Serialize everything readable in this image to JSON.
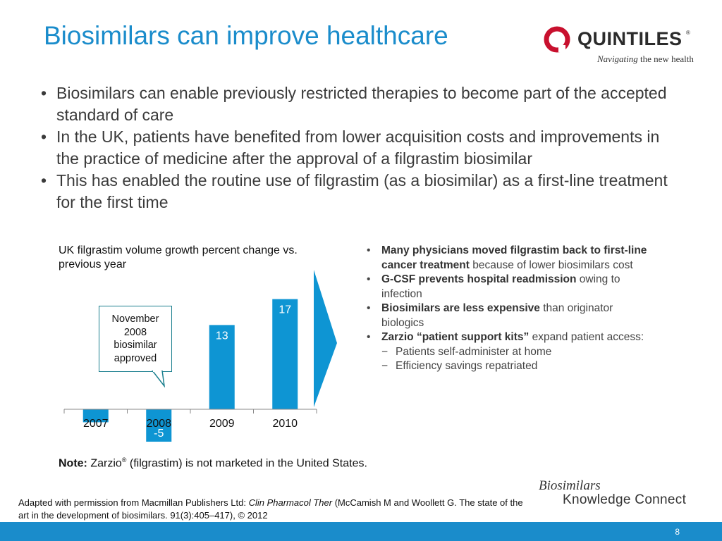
{
  "slide": {
    "title": "Biosimilars can improve healthcare",
    "page_number": "8"
  },
  "logo": {
    "name": "QUINTILES",
    "registered": "®",
    "tagline_italic": "Navigating",
    "tagline_rest": " the new health",
    "colors": {
      "mark": "#c8102e",
      "text": "#2b2b2b"
    }
  },
  "bullets": [
    "Biosimilars can enable previously restricted therapies to become part of the accepted standard of care",
    "In the UK, patients have benefited from lower acquisition costs and improvements in the practice of medicine after the approval of a filgrastim biosimilar",
    "This has enabled the routine use of filgrastim (as a biosimilar) as a first-line treatment for the first time"
  ],
  "bullet_symbol": "•",
  "callout": {
    "lines": [
      "November",
      "2008",
      "biosimilar",
      "approved"
    ]
  },
  "chart_data": {
    "type": "bar",
    "title": "UK filgrastim volume growth percent change vs. previous year",
    "categories": [
      "2007",
      "2008",
      "2009",
      "2010"
    ],
    "values": [
      -2,
      -5,
      13,
      17
    ],
    "data_labels": [
      "",
      "-5",
      "13",
      "17"
    ],
    "ylim": [
      -6,
      20
    ],
    "grid": false,
    "color": "#0e95d3"
  },
  "right_list": [
    {
      "level": 1,
      "bold": "Many physicians moved filgrastim back to first-line cancer treatment",
      "text": " because of lower biosimilars cost"
    },
    {
      "level": 1,
      "bold": "G-CSF prevents hospital readmission",
      "text": " owing to infection"
    },
    {
      "level": 1,
      "bold": "Biosimilars are less expensive",
      "text": " than originator biologics"
    },
    {
      "level": 1,
      "bold": "Zarzio “patient support kits”",
      "text": " expand patient access:"
    },
    {
      "level": 2,
      "bold": "",
      "text": "Patients self-administer at home"
    },
    {
      "level": 2,
      "bold": "",
      "text": "Efficiency savings repatriated"
    }
  ],
  "note": {
    "label": "Note:",
    "brand": " Zarzio",
    "reg": "®",
    "text": " (filgrastim) is not marketed in the United States."
  },
  "source": {
    "prefix": "Adapted with permission from Macmillan Publishers Ltd: ",
    "journal": "Clin Pharmacol Ther",
    "suffix": " (McCamish M and Woollett G.    The state of the art in the development of biosimilars. 91(3):405–417), © 2012"
  },
  "bkc": {
    "top": "Biosimilars",
    "bottom": "Knowledge Connect"
  },
  "colors": {
    "title": "#1a8ccb",
    "footer": "#1a8ccb",
    "bar": "#0e95d3",
    "arrow": "#0e95d3",
    "callout_border": "#1a7f8e"
  }
}
